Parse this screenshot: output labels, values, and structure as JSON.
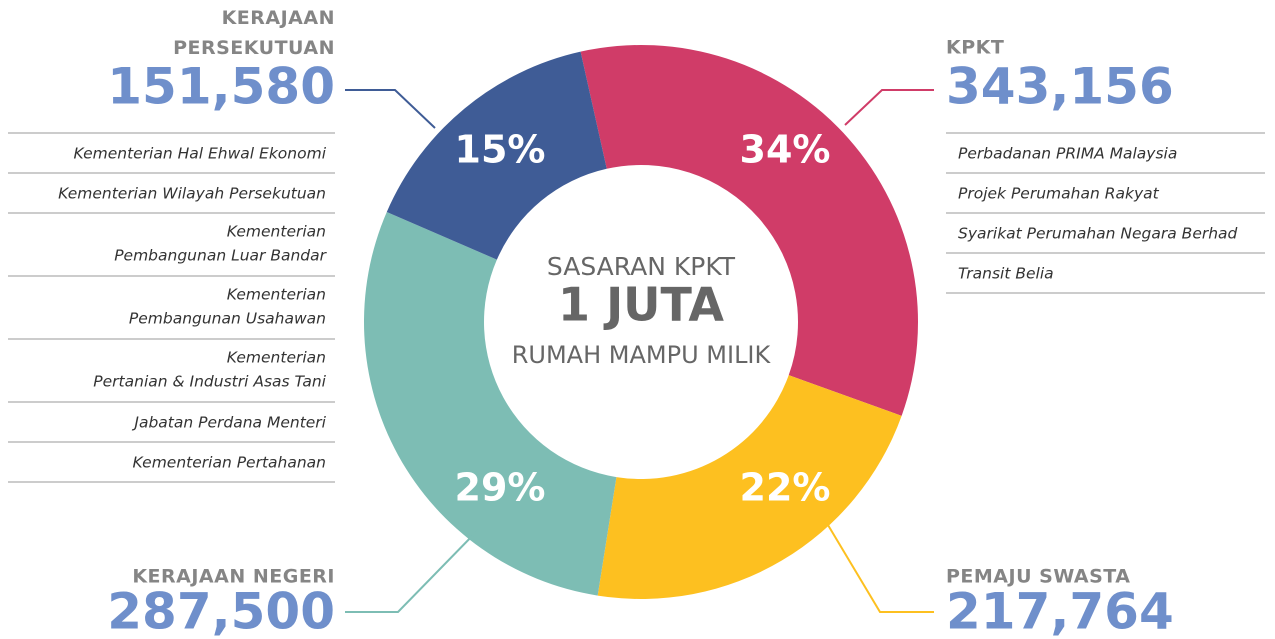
{
  "chart_data": {
    "type": "pie",
    "donut": true,
    "center": [
      "SASARAN KPKT",
      "1 JUTA",
      "RUMAH MAMPU MILIK"
    ],
    "categories": [
      "KPKT",
      "PEMAJU SWASTA",
      "KERAJAAN NEGERI",
      "KERAJAAN PERSEKUTUAN"
    ],
    "values": [
      34,
      22,
      29,
      15
    ],
    "value_labels": [
      "34%",
      "22%",
      "29%",
      "15%"
    ],
    "amount_labels": [
      "343,156",
      "217,764",
      "287,500",
      "151,580"
    ],
    "colors": [
      "#d03c68",
      "#fdc020",
      "#7dbdb4",
      "#3f5c96"
    ],
    "members": [
      [
        [
          "Perbadanan PRIMA Malaysia"
        ],
        [
          "Projek Perumahan Rakyat"
        ],
        [
          "Syarikat Perumahan Negara Berhad"
        ],
        [
          "Transit Belia"
        ]
      ],
      [],
      [],
      [
        [
          "Kementerian Hal Ehwal Ekonomi"
        ],
        [
          "Kementerian Wilayah Persekutuan"
        ],
        [
          "Kementerian",
          "Pembangunan Luar Bandar"
        ],
        [
          "Kementerian",
          "Pembangunan Usahawan"
        ],
        [
          "Kementerian",
          "Pertanian & Industri Asas Tani"
        ],
        [
          "Jabatan Perdana Menteri"
        ],
        [
          "Kementerian Pertahanan"
        ]
      ]
    ]
  }
}
